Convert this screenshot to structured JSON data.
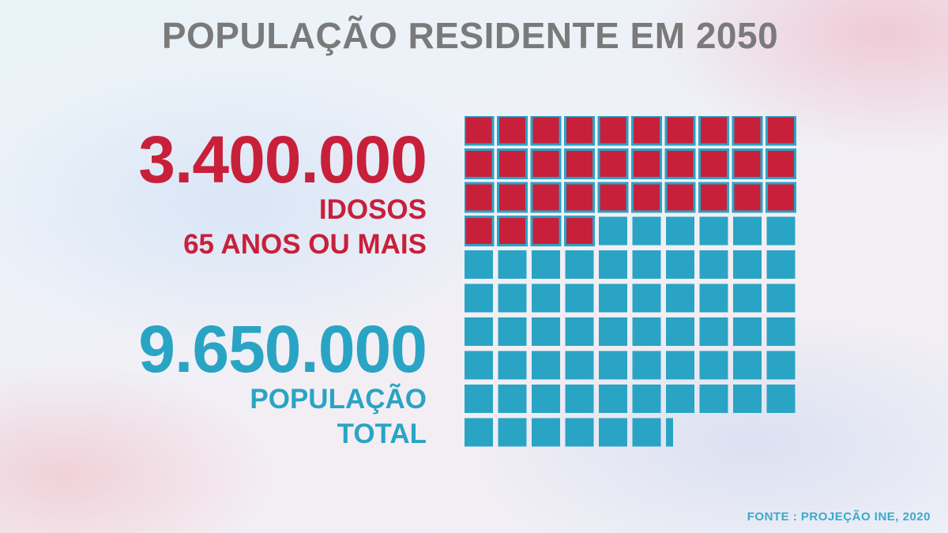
{
  "title": "POPULAÇÃO RESIDENTE EM 2050",
  "elderly": {
    "value_label": "3.400.000",
    "line1": "IDOSOS",
    "line2": "65 ANOS OU MAIS"
  },
  "total": {
    "value_label": "9.650.000",
    "line1": "POPULAÇÃO",
    "line2": "TOTAL"
  },
  "source": "FONTE : PROJEÇÃO  INE, 2020",
  "colors": {
    "elderly": "#c8203a",
    "total": "#2aa4c4",
    "title": "#7a7a7a"
  },
  "chart_data": {
    "type": "waffle",
    "grid_columns": 10,
    "units_total": 96.5,
    "units_highlighted": 34,
    "unit_value": 100000,
    "series": [
      {
        "name": "IDOSOS 65 ANOS OU MAIS",
        "value": 3400000
      },
      {
        "name": "POPULAÇÃO TOTAL",
        "value": 9650000
      }
    ]
  }
}
